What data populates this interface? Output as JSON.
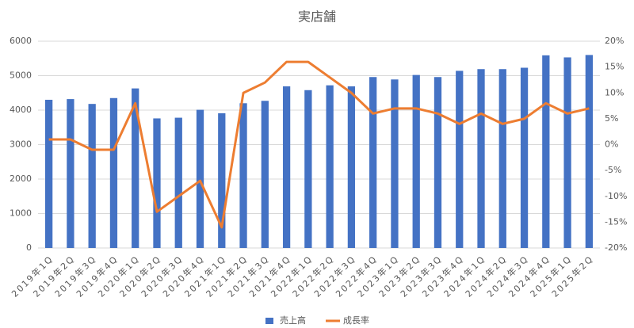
{
  "chart_data": {
    "type": "bar+line",
    "title": "実店舗",
    "categories": [
      "2019年1Q",
      "2019年2Q",
      "2019年3Q",
      "2019年4Q",
      "2020年1Q",
      "2020年2Q",
      "2020年3Q",
      "2020年4Q",
      "2021年1Q",
      "2021年2Q",
      "2021年3Q",
      "2021年4Q",
      "2022年1Q",
      "2022年2Q",
      "2022年3Q",
      "2022年4Q",
      "2023年1Q",
      "2023年2Q",
      "2023年3Q",
      "2023年4Q",
      "2024年1Q",
      "2024年2Q",
      "2024年3Q",
      "2024年4Q",
      "2025年1Q",
      "2025年2Q"
    ],
    "series": [
      {
        "name": "売上高",
        "color": "#4472c4",
        "type": "bar",
        "values": [
          4300,
          4320,
          4180,
          4350,
          4630,
          3760,
          3780,
          4010,
          3910,
          4200,
          4270,
          4690,
          4580,
          4720,
          4690,
          4960,
          4890,
          5020,
          4960,
          5140,
          5190,
          5190,
          5230,
          5590,
          5530,
          5600
        ]
      },
      {
        "name": "成長率",
        "color": "#ed7d31",
        "type": "line",
        "axis": "y2",
        "values": [
          1,
          1,
          -1,
          -1,
          8,
          -13,
          -10,
          -7,
          -16,
          10,
          12,
          16,
          16,
          13,
          10,
          6,
          7,
          7,
          6,
          4,
          6,
          4,
          5,
          8,
          6,
          7
        ]
      }
    ],
    "ylim": [
      0,
      6000
    ],
    "yticks": [
      0,
      1000,
      2000,
      3000,
      4000,
      5000,
      6000
    ],
    "y2lim": [
      -20,
      20
    ],
    "y2ticks": [
      {
        "value": -20,
        "label": "-20%"
      },
      {
        "value": -15,
        "label": "-15%"
      },
      {
        "value": -10,
        "label": "-10%"
      },
      {
        "value": -5,
        "label": "-5%"
      },
      {
        "value": 0,
        "label": "0%"
      },
      {
        "value": 5,
        "label": "5%"
      },
      {
        "value": 10,
        "label": "10%"
      },
      {
        "value": 15,
        "label": "15%"
      },
      {
        "value": 20,
        "label": "20%"
      }
    ],
    "grid": true,
    "legend": "bottom"
  }
}
